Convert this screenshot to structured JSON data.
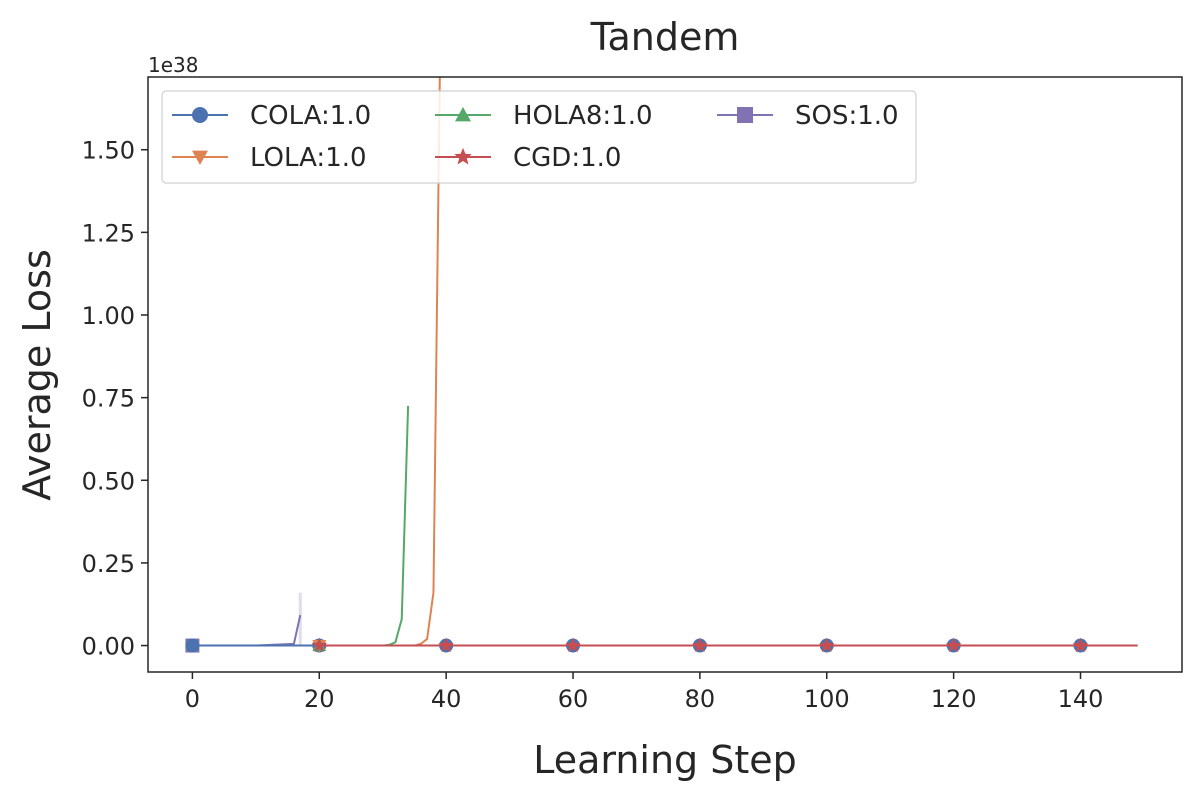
{
  "chart_data": {
    "type": "line",
    "title": "Tandem",
    "xlabel": "Learning Step",
    "ylabel": "Average Loss",
    "y_offset_label": "1e38",
    "xlim": [
      -7,
      156
    ],
    "ylim": [
      -0.08,
      1.72
    ],
    "x_ticks": [
      0,
      20,
      40,
      60,
      80,
      100,
      120,
      140
    ],
    "x_tick_labels": [
      "0",
      "20",
      "40",
      "60",
      "80",
      "100",
      "120",
      "140"
    ],
    "y_ticks": [
      0.0,
      0.25,
      0.5,
      0.75,
      1.0,
      1.25,
      1.5
    ],
    "y_tick_labels": [
      "0.00",
      "0.25",
      "0.50",
      "0.75",
      "1.00",
      "1.25",
      "1.50"
    ],
    "grid": false,
    "legend_position": "top-left",
    "legend_columns": 3,
    "series": [
      {
        "name": "COLA:1.0",
        "color": "#4c72b0",
        "marker": "circle",
        "x": [
          0,
          149
        ],
        "y": [
          0.0,
          0.0
        ],
        "marker_x": [
          0,
          20,
          40,
          60,
          80,
          100,
          120,
          140
        ]
      },
      {
        "name": "LOLA:1.0",
        "color": "#dd8452",
        "marker": "triangle-down",
        "x": [
          20,
          30,
          35,
          36,
          37,
          38,
          39
        ],
        "y": [
          0.0,
          0.0,
          0.0,
          0.005,
          0.02,
          0.16,
          1.72
        ],
        "marker_x": [
          20
        ]
      },
      {
        "name": "HOLA8:1.0",
        "color": "#55a868",
        "marker": "triangle-up",
        "x": [
          20,
          28,
          30,
          31,
          32,
          33,
          34
        ],
        "y": [
          0.0,
          0.0,
          0.0,
          0.002,
          0.01,
          0.08,
          0.725
        ],
        "marker_x": [
          20
        ]
      },
      {
        "name": "CGD:1.0",
        "color": "#c44e52",
        "marker": "star",
        "x": [
          20,
          149
        ],
        "y": [
          0.0,
          0.0
        ],
        "marker_x": [
          20,
          40,
          60,
          80,
          100,
          120,
          140
        ]
      },
      {
        "name": "SOS:1.0",
        "color": "#8172b3",
        "marker": "square",
        "x": [
          0,
          10,
          16,
          17
        ],
        "y": [
          0.0,
          0.0,
          0.005,
          0.092
        ],
        "marker_x": [
          0
        ]
      }
    ]
  }
}
